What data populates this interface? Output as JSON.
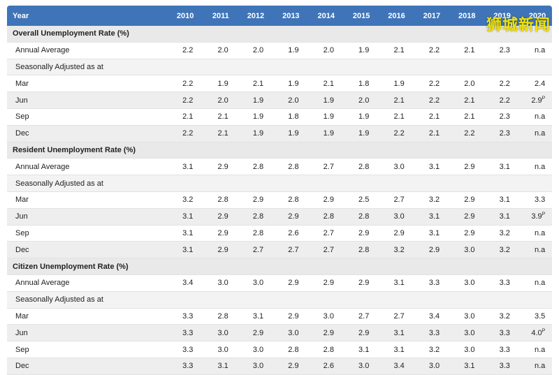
{
  "header": {
    "year_label": "Year",
    "years": [
      "2010",
      "2011",
      "2012",
      "2013",
      "2014",
      "2015",
      "2016",
      "2017",
      "2018",
      "2019",
      "2020"
    ]
  },
  "sections": [
    {
      "title": "Overall Unemployment Rate (%)",
      "annual": {
        "label": "Annual Average",
        "values": [
          "2.2",
          "2.0",
          "2.0",
          "1.9",
          "2.0",
          "1.9",
          "2.1",
          "2.2",
          "2.1",
          "2.3",
          "n.a"
        ]
      },
      "subheader": "Seasonally Adjusted as at",
      "rows": [
        {
          "label": "Mar",
          "values": [
            "2.2",
            "1.9",
            "2.1",
            "1.9",
            "2.1",
            "1.8",
            "1.9",
            "2.2",
            "2.0",
            "2.2",
            "2.4"
          ]
        },
        {
          "label": "Jun",
          "values": [
            "2.2",
            "2.0",
            "1.9",
            "2.0",
            "1.9",
            "2.0",
            "2.1",
            "2.2",
            "2.1",
            "2.2",
            "2.9"
          ],
          "last_sup": "P"
        },
        {
          "label": "Sep",
          "values": [
            "2.1",
            "2.1",
            "1.9",
            "1.8",
            "1.9",
            "1.9",
            "2.1",
            "2.1",
            "2.1",
            "2.3",
            "n.a"
          ]
        },
        {
          "label": "Dec",
          "values": [
            "2.2",
            "2.1",
            "1.9",
            "1.9",
            "1.9",
            "1.9",
            "2.2",
            "2.1",
            "2.2",
            "2.3",
            "n.a"
          ]
        }
      ]
    },
    {
      "title": "Resident Unemployment Rate (%)",
      "annual": {
        "label": "Annual Average",
        "values": [
          "3.1",
          "2.9",
          "2.8",
          "2.8",
          "2.7",
          "2.8",
          "3.0",
          "3.1",
          "2.9",
          "3.1",
          "n.a"
        ]
      },
      "subheader": "Seasonally Adjusted as at",
      "rows": [
        {
          "label": "Mar",
          "values": [
            "3.2",
            "2.8",
            "2.9",
            "2.8",
            "2.9",
            "2.5",
            "2.7",
            "3.2",
            "2.9",
            "3.1",
            "3.3"
          ]
        },
        {
          "label": "Jun",
          "values": [
            "3.1",
            "2.9",
            "2.8",
            "2.9",
            "2.8",
            "2.8",
            "3.0",
            "3.1",
            "2.9",
            "3.1",
            "3.9"
          ],
          "last_sup": "P"
        },
        {
          "label": "Sep",
          "values": [
            "3.1",
            "2.9",
            "2.8",
            "2.6",
            "2.7",
            "2.9",
            "2.9",
            "3.1",
            "2.9",
            "3.2",
            "n.a"
          ]
        },
        {
          "label": "Dec",
          "values": [
            "3.1",
            "2.9",
            "2.7",
            "2.7",
            "2.7",
            "2.8",
            "3.2",
            "2.9",
            "3.0",
            "3.2",
            "n.a"
          ]
        }
      ]
    },
    {
      "title": "Citizen Unemployment Rate (%)",
      "annual": {
        "label": "Annual Average",
        "values": [
          "3.4",
          "3.0",
          "3.0",
          "2.9",
          "2.9",
          "2.9",
          "3.1",
          "3.3",
          "3.0",
          "3.3",
          "n.a"
        ]
      },
      "subheader": "Seasonally Adjusted as at",
      "rows": [
        {
          "label": "Mar",
          "values": [
            "3.3",
            "2.8",
            "3.1",
            "2.9",
            "3.0",
            "2.7",
            "2.7",
            "3.4",
            "3.0",
            "3.2",
            "3.5"
          ]
        },
        {
          "label": "Jun",
          "values": [
            "3.3",
            "3.0",
            "2.9",
            "3.0",
            "2.9",
            "2.9",
            "3.1",
            "3.3",
            "3.0",
            "3.3",
            "4.0"
          ],
          "last_sup": "P"
        },
        {
          "label": "Sep",
          "values": [
            "3.3",
            "3.0",
            "3.0",
            "2.8",
            "2.8",
            "3.1",
            "3.1",
            "3.2",
            "3.0",
            "3.3",
            "n.a"
          ]
        },
        {
          "label": "Dec",
          "values": [
            "3.3",
            "3.1",
            "3.0",
            "2.9",
            "2.6",
            "3.0",
            "3.4",
            "3.0",
            "3.1",
            "3.3",
            "n.a"
          ]
        }
      ]
    }
  ],
  "watermark": "狮城新闻"
}
